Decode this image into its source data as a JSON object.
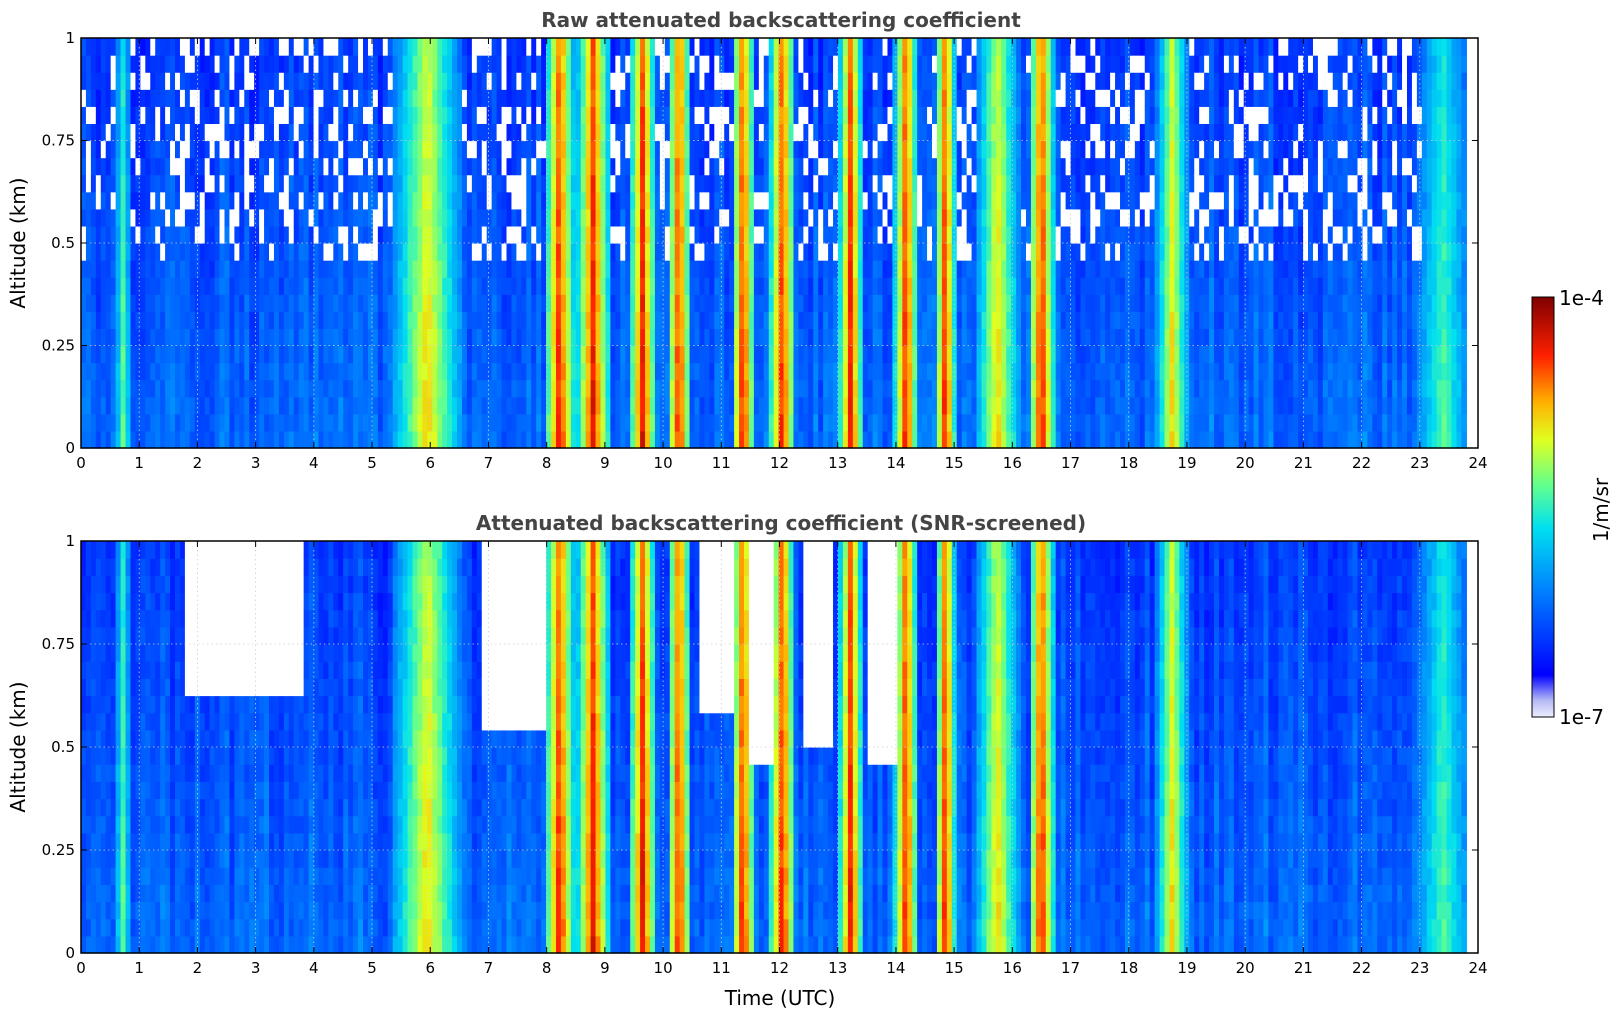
{
  "chart_data": [
    {
      "type": "heatmap",
      "title": "Raw attenuated backscattering coefficient",
      "xlabel": "",
      "ylabel": "Altitude (km)",
      "xlim": [
        0,
        24
      ],
      "ylim": [
        0,
        1
      ],
      "x_ticks": [
        "0",
        "1",
        "2",
        "3",
        "4",
        "5",
        "6",
        "7",
        "8",
        "9",
        "10",
        "11",
        "12",
        "13",
        "14",
        "15",
        "16",
        "17",
        "18",
        "19",
        "20",
        "21",
        "22",
        "23",
        "24"
      ],
      "y_ticks": [
        "0",
        "0.25",
        "0.5",
        "0.75",
        "1"
      ],
      "grid": true,
      "data_extent_hours": [
        0,
        23.8
      ],
      "colormap": "jet",
      "screened": false,
      "precipitation_bands": [
        {
          "start": 0.68,
          "end": 0.76,
          "intensity": "light"
        },
        {
          "start": 5.5,
          "end": 6.4,
          "intensity": "moderate"
        },
        {
          "start": 8.1,
          "end": 8.35,
          "intensity": "heavy"
        },
        {
          "start": 8.65,
          "end": 8.95,
          "intensity": "heavy"
        },
        {
          "start": 9.55,
          "end": 9.75,
          "intensity": "heavy"
        },
        {
          "start": 10.2,
          "end": 10.35,
          "intensity": "heavy"
        },
        {
          "start": 11.3,
          "end": 11.45,
          "intensity": "heavy"
        },
        {
          "start": 11.95,
          "end": 12.15,
          "intensity": "heavy"
        },
        {
          "start": 13.15,
          "end": 13.3,
          "intensity": "heavy"
        },
        {
          "start": 14.1,
          "end": 14.25,
          "intensity": "heavy"
        },
        {
          "start": 14.8,
          "end": 14.9,
          "intensity": "heavy"
        },
        {
          "start": 15.5,
          "end": 16.0,
          "intensity": "moderate"
        },
        {
          "start": 16.4,
          "end": 16.6,
          "intensity": "heavy"
        },
        {
          "start": 18.6,
          "end": 18.9,
          "intensity": "moderate"
        },
        {
          "start": 23.0,
          "end": 23.8,
          "intensity": "light"
        }
      ]
    },
    {
      "type": "heatmap",
      "title": "Attenuated backscattering coefficient (SNR-screened)",
      "xlabel": "Time (UTC)",
      "ylabel": "Altitude (km)",
      "xlim": [
        0,
        24
      ],
      "ylim": [
        0,
        1
      ],
      "x_ticks": [
        "0",
        "1",
        "2",
        "3",
        "4",
        "5",
        "6",
        "7",
        "8",
        "9",
        "10",
        "11",
        "12",
        "13",
        "14",
        "15",
        "16",
        "17",
        "18",
        "19",
        "20",
        "21",
        "22",
        "23",
        "24"
      ],
      "y_ticks": [
        "0",
        "0.25",
        "0.5",
        "0.75",
        "1"
      ],
      "grid": true,
      "data_extent_hours": [
        0,
        23.8
      ],
      "colormap": "jet",
      "screened": true,
      "screened_out_regions": [
        {
          "start": 1.8,
          "end": 3.8,
          "min_alt_km": 0.62
        },
        {
          "start": 6.9,
          "end": 8.0,
          "min_alt_km": 0.55
        },
        {
          "start": 10.6,
          "end": 11.2,
          "min_alt_km": 0.6
        },
        {
          "start": 11.5,
          "end": 11.9,
          "min_alt_km": 0.45
        },
        {
          "start": 12.4,
          "end": 12.9,
          "min_alt_km": 0.5
        },
        {
          "start": 13.5,
          "end": 14.0,
          "min_alt_km": 0.45
        }
      ]
    }
  ],
  "colorbar": {
    "max_label": "1e-4",
    "min_label": "1e-7",
    "unit_label": "1/m/sr",
    "scale": "log",
    "range": [
      1e-07,
      0.0001
    ]
  }
}
